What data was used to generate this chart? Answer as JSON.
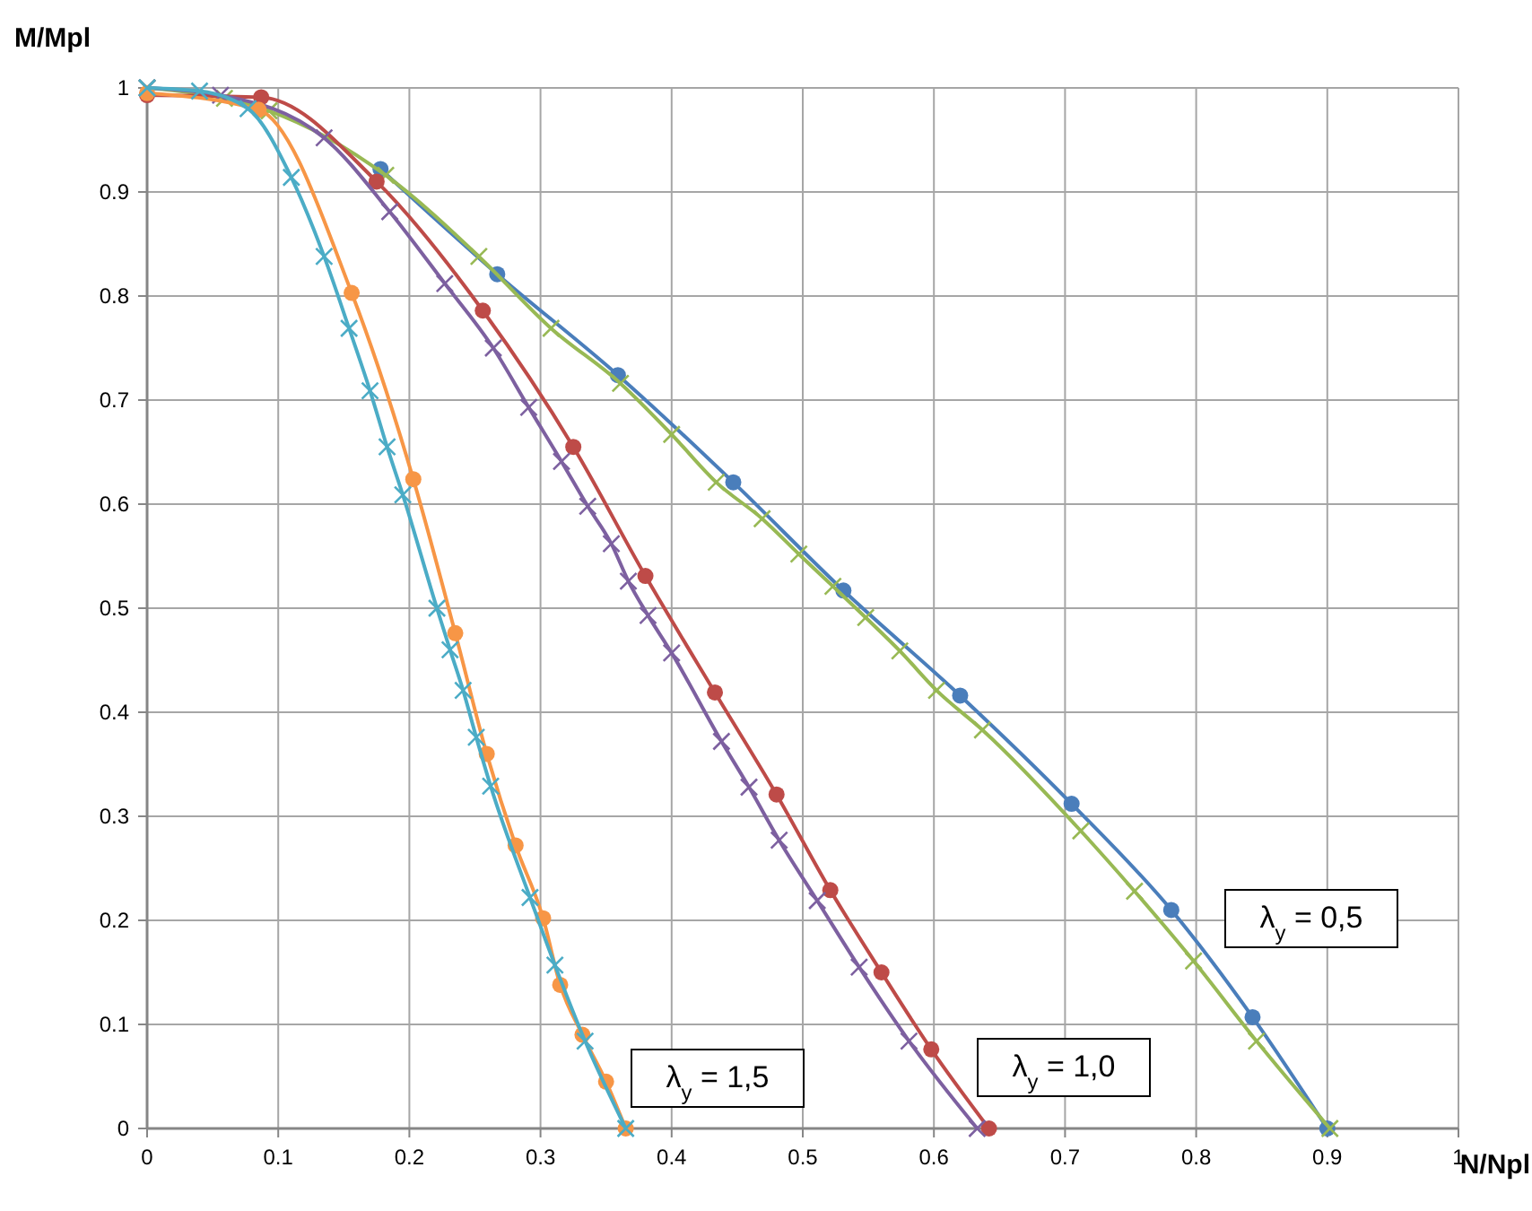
{
  "chart_data": {
    "type": "line",
    "xlabel": "N/Npl",
    "ylabel": "M/Mpl",
    "xlim": [
      0,
      1
    ],
    "xticks": [
      0,
      0.1,
      0.2,
      0.3,
      0.4,
      0.5,
      0.6,
      0.7,
      0.8,
      0.9,
      1
    ],
    "ylim": [
      0,
      1
    ],
    "yticks": [
      0,
      0.1,
      0.2,
      0.3,
      0.4,
      0.5,
      0.6,
      0.7,
      0.8,
      0.9,
      1
    ],
    "grid": true,
    "series": [
      {
        "color": "#4a7ebb",
        "marker": "circle",
        "x": [
          0.178,
          0.267,
          0.359,
          0.447,
          0.531,
          0.62,
          0.705,
          0.781,
          0.843,
          0.9
        ],
        "values": [
          0.922,
          0.821,
          0.724,
          0.621,
          0.517,
          0.416,
          0.312,
          0.21,
          0.107,
          0
        ]
      },
      {
        "color": "#98b954",
        "marker": "cross",
        "x": [
          0,
          0.059,
          0.093,
          0.182,
          0.253,
          0.308,
          0.361,
          0.4,
          0.434,
          0.469,
          0.497,
          0.523,
          0.548,
          0.574,
          0.602,
          0.637,
          0.712,
          0.753,
          0.798,
          0.846,
          0.902
        ],
        "values": [
          1,
          0.99,
          0.978,
          0.916,
          0.838,
          0.769,
          0.716,
          0.667,
          0.621,
          0.586,
          0.552,
          0.521,
          0.491,
          0.459,
          0.421,
          0.383,
          0.286,
          0.228,
          0.161,
          0.084,
          0
        ]
      },
      {
        "color": "#be4b48",
        "marker": "circle",
        "x": [
          0,
          0.087,
          0.175,
          0.256,
          0.325,
          0.38,
          0.433,
          0.48,
          0.521,
          0.56,
          0.598,
          0.642
        ],
        "values": [
          0.993,
          0.991,
          0.91,
          0.786,
          0.655,
          0.531,
          0.419,
          0.321,
          0.229,
          0.15,
          0.076,
          0
        ]
      },
      {
        "color": "#7d60a0",
        "marker": "cross",
        "x": [
          0,
          0.056,
          0.135,
          0.185,
          0.227,
          0.264,
          0.291,
          0.316,
          0.336,
          0.354,
          0.367,
          0.382,
          0.4,
          0.438,
          0.459,
          0.482,
          0.511,
          0.543,
          0.581,
          0.633
        ],
        "values": [
          1,
          0.993,
          0.952,
          0.881,
          0.812,
          0.75,
          0.693,
          0.641,
          0.598,
          0.562,
          0.526,
          0.493,
          0.457,
          0.372,
          0.328,
          0.277,
          0.219,
          0.155,
          0.084,
          0
        ]
      },
      {
        "color": "#f79646",
        "marker": "circle",
        "x": [
          0,
          0.085,
          0.156,
          0.203,
          0.235,
          0.259,
          0.281,
          0.302,
          0.315,
          0.332,
          0.35,
          0.365
        ],
        "values": [
          0.995,
          0.979,
          0.803,
          0.624,
          0.476,
          0.36,
          0.272,
          0.202,
          0.138,
          0.09,
          0.045,
          0
        ]
      },
      {
        "color": "#4bacc6",
        "marker": "cross",
        "x": [
          0,
          0.04,
          0.077,
          0.11,
          0.135,
          0.154,
          0.17,
          0.183,
          0.195,
          0.221,
          0.231,
          0.241,
          0.251,
          0.262,
          0.292,
          0.311,
          0.334,
          0.365
        ],
        "values": [
          1,
          0.997,
          0.98,
          0.914,
          0.838,
          0.769,
          0.709,
          0.655,
          0.609,
          0.5,
          0.46,
          0.421,
          0.376,
          0.329,
          0.222,
          0.157,
          0.084,
          0
        ]
      }
    ],
    "annotations": [
      "λ$_{y}$ = 1,5",
      "λ$_{y}$ = 1,0",
      "λ$_{y}$ = 0,5"
    ]
  }
}
